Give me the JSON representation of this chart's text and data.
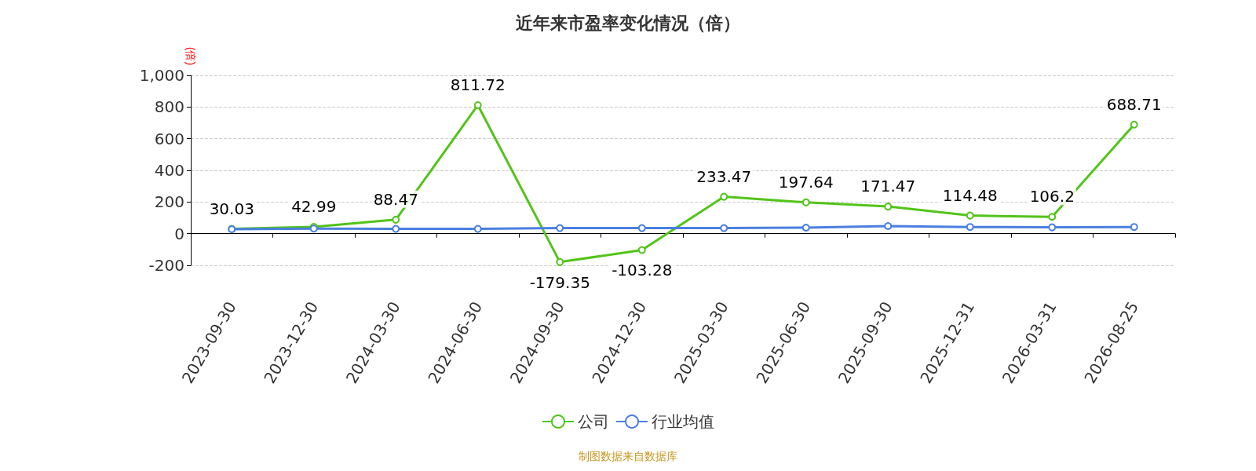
{
  "chart_data": {
    "type": "line",
    "title": "近年来市盈率变化情况（倍）",
    "ylabel": "(倍)",
    "categories": [
      "2023-09-30",
      "2023-12-30",
      "2024-03-30",
      "2024-06-30",
      "2024-09-30",
      "2024-12-30",
      "2025-03-30",
      "2025-06-30",
      "2025-09-30",
      "2025-12-31",
      "2026-03-31",
      "2026-08-25"
    ],
    "series": [
      {
        "name": "公司",
        "color": "#52c41a",
        "values": [
          30.03,
          42.99,
          88.47,
          811.72,
          -179.35,
          -103.28,
          233.47,
          197.64,
          171.47,
          114.48,
          106.2,
          688.71
        ],
        "value_labels": [
          "30.03",
          "42.99",
          "88.47",
          "811.72",
          "-179.35",
          "-103.28",
          "233.47",
          "197.64",
          "171.47",
          "114.48",
          "106.2",
          "688.71"
        ]
      },
      {
        "name": "行业均值",
        "color": "#4a7fe0",
        "values": [
          28,
          32,
          30,
          30,
          35,
          35,
          35,
          38,
          48,
          42,
          40,
          42
        ]
      }
    ],
    "ylim": [
      -200,
      1000
    ],
    "yticks": [
      -200,
      0,
      200,
      400,
      600,
      800,
      {
        "value": 1000,
        "label": "1,000"
      }
    ],
    "grid": "y",
    "legend": "bottom",
    "marker": "circle",
    "line_style": "solid",
    "annotations": [
      "制图数据来自数据库"
    ]
  }
}
